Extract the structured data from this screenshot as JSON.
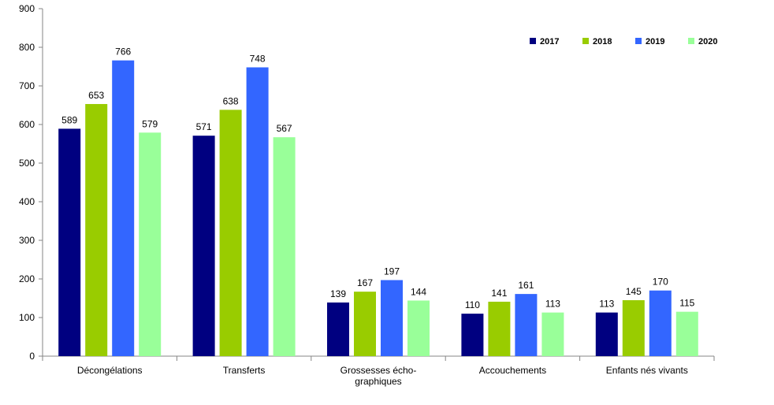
{
  "chart_data": {
    "type": "bar",
    "categories": [
      [
        "Décongélations"
      ],
      [
        "Transferts"
      ],
      [
        "Grossesses écho-",
        "graphiques"
      ],
      [
        "Accouchements"
      ],
      [
        "Enfants nés vivants"
      ]
    ],
    "series": [
      {
        "name": "2017",
        "color": "#000080",
        "values": [
          589,
          571,
          139,
          110,
          113
        ]
      },
      {
        "name": "2018",
        "color": "#99CC00",
        "values": [
          653,
          638,
          167,
          141,
          145
        ]
      },
      {
        "name": "2019",
        "color": "#3366FF",
        "values": [
          766,
          748,
          197,
          161,
          170
        ]
      },
      {
        "name": "2020",
        "color": "#99FF99",
        "values": [
          579,
          567,
          144,
          113,
          115
        ]
      }
    ],
    "ylim": [
      0,
      900
    ],
    "yticks": [
      0,
      100,
      200,
      300,
      400,
      500,
      600,
      700,
      800,
      900
    ],
    "title": "",
    "xlabel": "",
    "ylabel": "",
    "legend_position": "top-right",
    "grid": false,
    "data_labels": true
  }
}
